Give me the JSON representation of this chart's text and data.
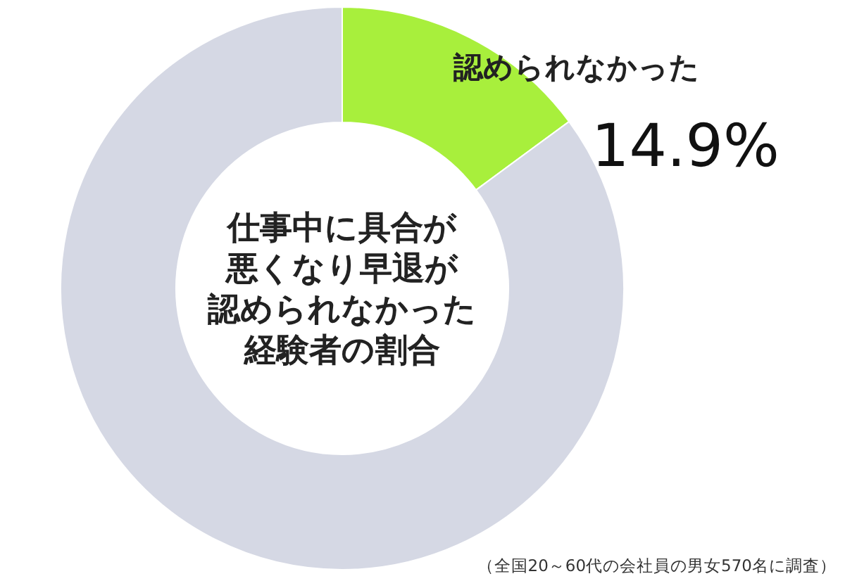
{
  "chart_data": {
    "type": "donut",
    "title": "仕事中に具合が悪くなり早退が認められなかった経験者の割合",
    "categories": [
      "認められなかった",
      null
    ],
    "values": [
      14.9,
      85.1
    ],
    "colors": [
      "#a8ef3c",
      "#d5d8e4"
    ],
    "value_labels": [
      "14.9%",
      null
    ],
    "annotations": [
      "（全国20～60代の会社員の男女570名に調査）"
    ]
  }
}
